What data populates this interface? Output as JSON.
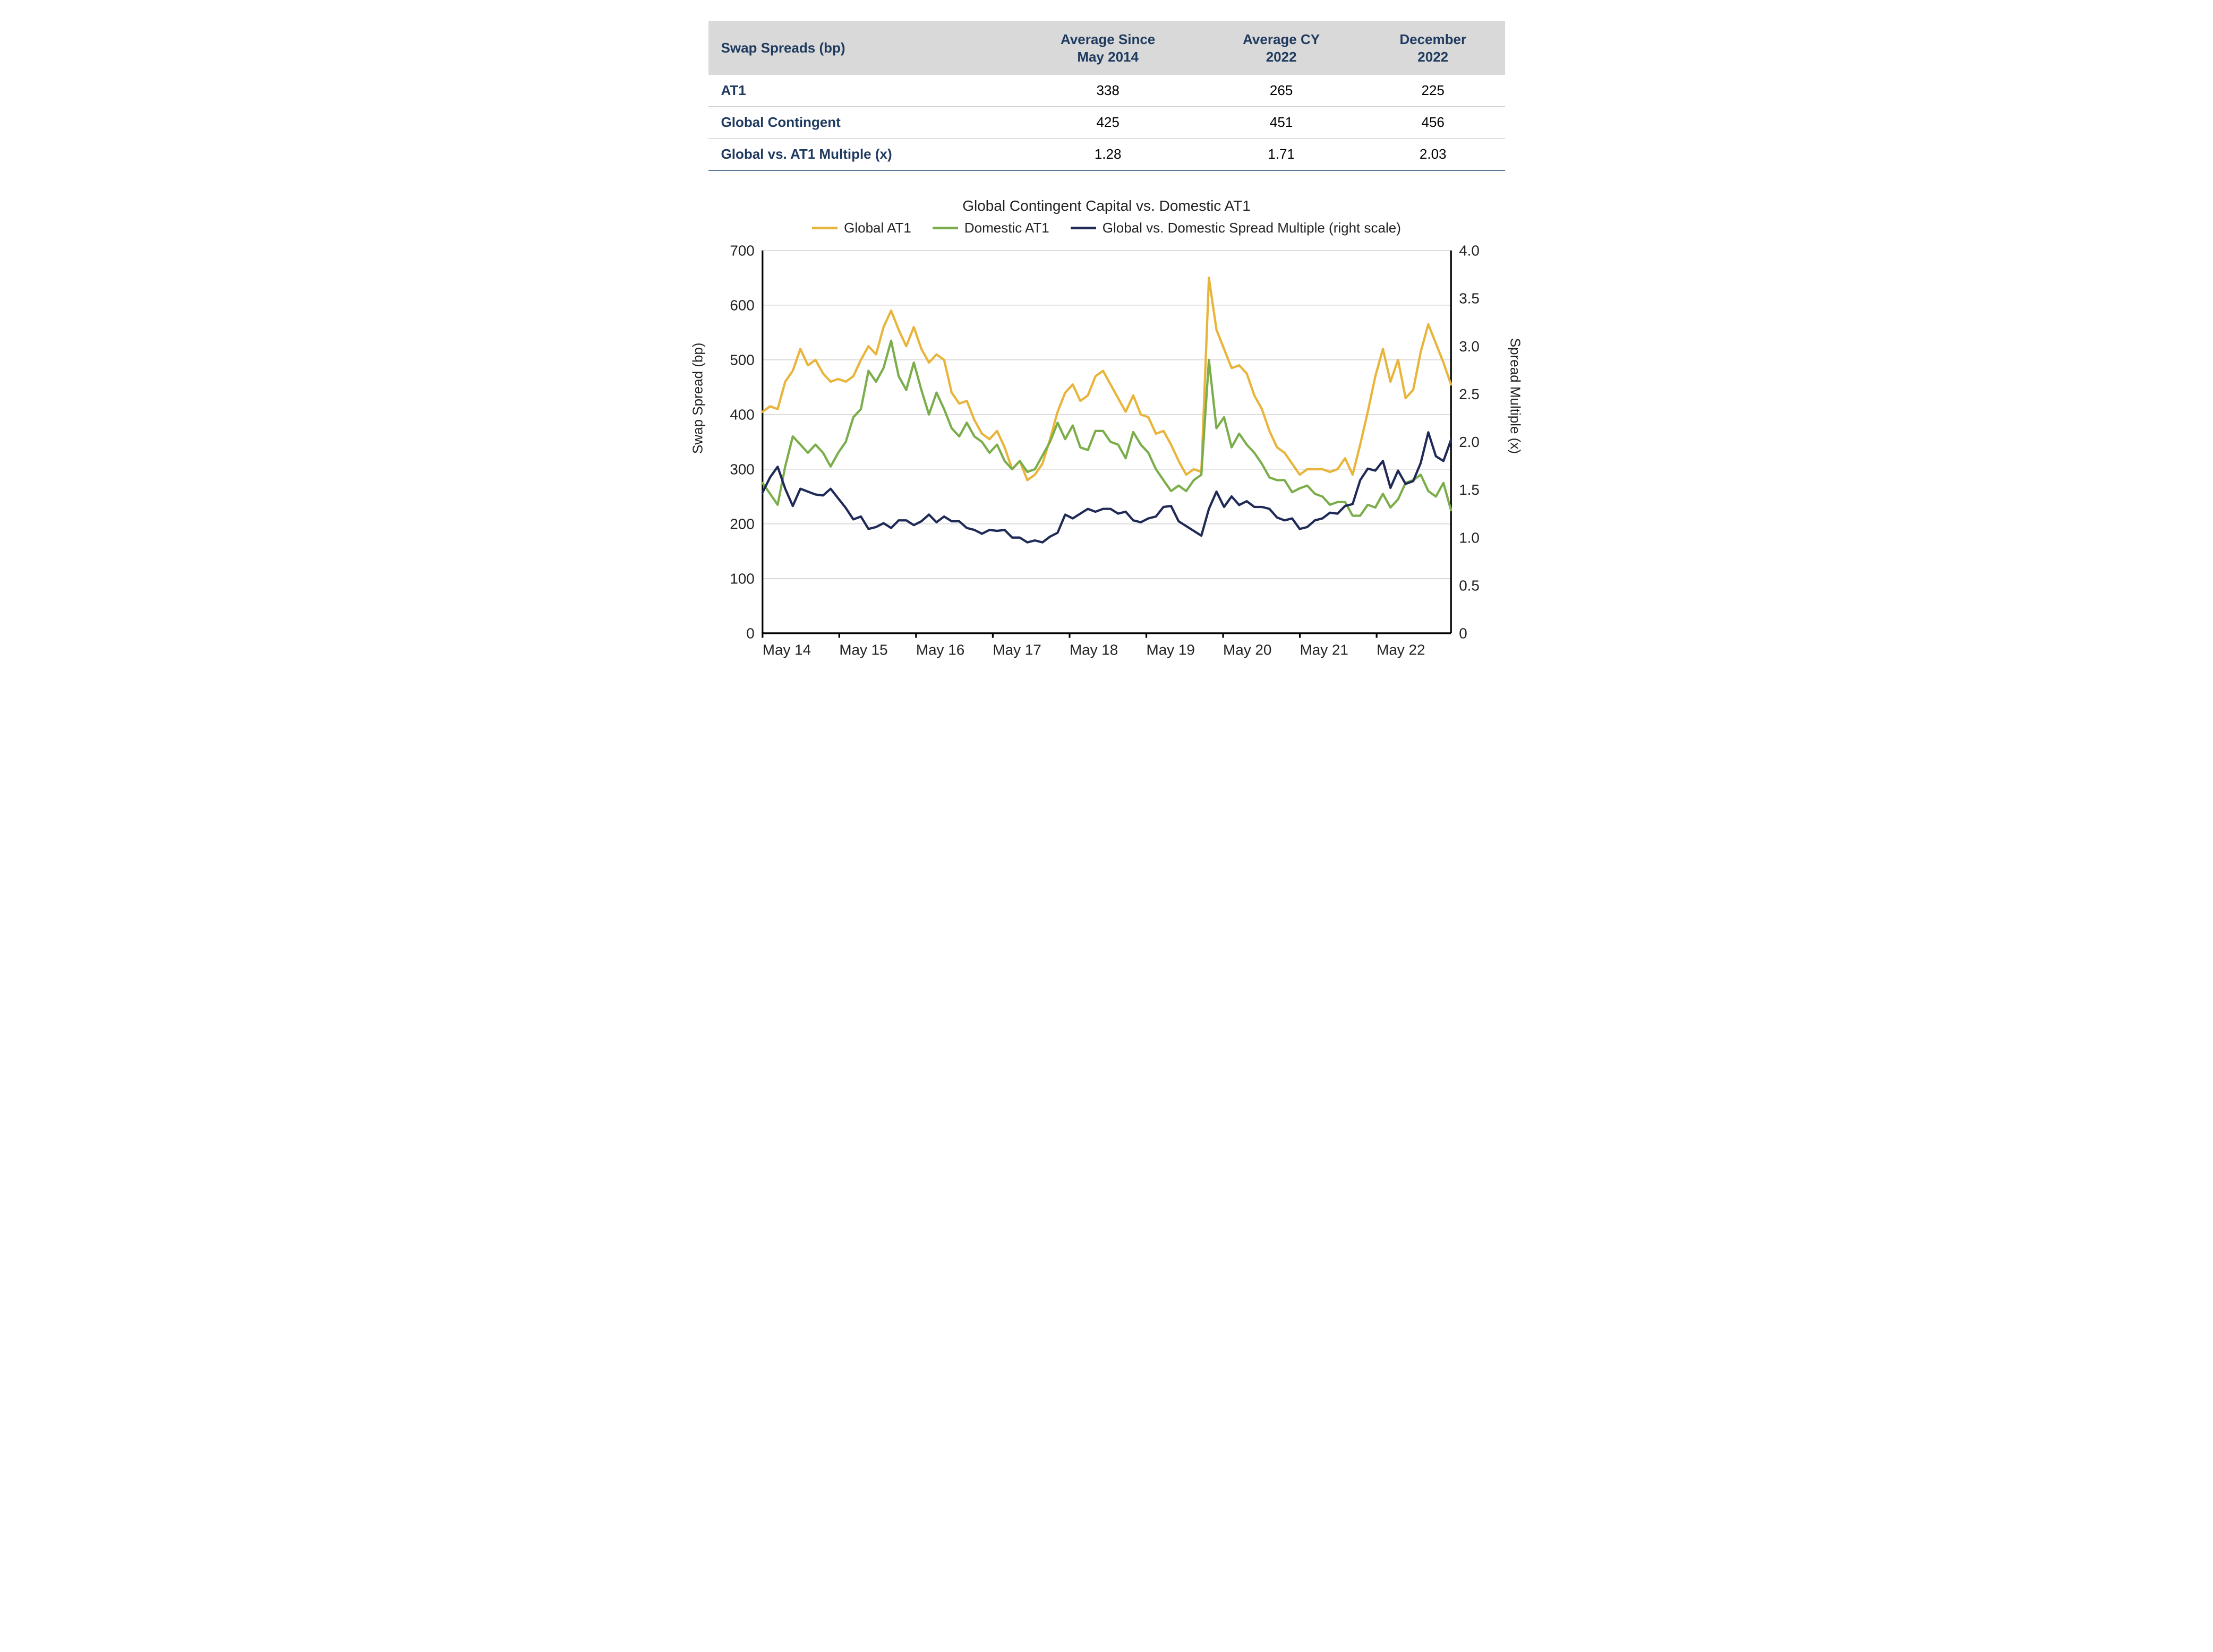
{
  "table": {
    "headers": [
      "Swap Spreads (bp)",
      "Average Since\nMay 2014",
      "Average CY\n2022",
      "December\n2022"
    ],
    "rows": [
      {
        "label": "AT1",
        "c1": "338",
        "c2": "265",
        "c3": "225"
      },
      {
        "label": "Global Contingent",
        "c1": "425",
        "c2": "451",
        "c3": "456"
      },
      {
        "label": "Global vs. AT1 Multiple (x)",
        "c1": "1.28",
        "c2": "1.71",
        "c3": "2.03"
      }
    ]
  },
  "chart": {
    "title": "Global Contingent Capital vs. Domestic AT1",
    "legend": [
      {
        "label": "Global AT1",
        "color": "#e8b43a"
      },
      {
        "label": "Domestic AT1",
        "color": "#7bae4b"
      },
      {
        "label": "Global vs. Domestic Spread Multiple (right scale)",
        "color": "#1f2a57"
      }
    ],
    "left_axis": {
      "label": "Swap Spread (bp)",
      "min": 0,
      "max": 700,
      "ticks": [
        0,
        100,
        200,
        300,
        400,
        500,
        600,
        700
      ],
      "fontsize": 26
    },
    "right_axis": {
      "label": "Spread Multiple (x)",
      "min": 0,
      "max": 4.0,
      "ticks": [
        0,
        0.5,
        1.0,
        1.5,
        2.0,
        2.5,
        3.0,
        3.5,
        4.0
      ],
      "tick_labels": [
        "0",
        "0.5",
        "1.0",
        "1.5",
        "2.0",
        "2.5",
        "3.0",
        "3.5",
        "4.0"
      ],
      "fontsize": 26
    },
    "x_axis": {
      "labels": [
        "May 14",
        "May 15",
        "May 16",
        "May 17",
        "May 18",
        "May 19",
        "May 20",
        "May 21",
        "May 22"
      ],
      "fontsize": 26
    },
    "grid_color": "#bfbfbf",
    "axis_color": "#000000",
    "background": "#ffffff",
    "line_width": 4,
    "series": {
      "global_at1": {
        "color": "#e8b43a",
        "y_axis": "left",
        "values": [
          405,
          415,
          410,
          460,
          480,
          520,
          490,
          500,
          475,
          460,
          465,
          460,
          470,
          500,
          525,
          510,
          560,
          590,
          555,
          525,
          560,
          520,
          495,
          510,
          500,
          440,
          420,
          425,
          390,
          365,
          355,
          370,
          340,
          300,
          315,
          280,
          290,
          310,
          355,
          405,
          440,
          455,
          425,
          435,
          470,
          480,
          455,
          430,
          405,
          435,
          400,
          395,
          365,
          370,
          345,
          315,
          290,
          300,
          295,
          650,
          555,
          520,
          485,
          490,
          475,
          435,
          410,
          370,
          340,
          330,
          310,
          290,
          300,
          300,
          300,
          295,
          300,
          320,
          290,
          345,
          405,
          470,
          520,
          460,
          500,
          430,
          445,
          515,
          565,
          530,
          495,
          455
        ]
      },
      "domestic_at1": {
        "color": "#7bae4b",
        "y_axis": "left",
        "values": [
          275,
          255,
          235,
          305,
          360,
          345,
          330,
          345,
          330,
          305,
          330,
          350,
          395,
          410,
          480,
          460,
          485,
          535,
          470,
          445,
          495,
          445,
          400,
          440,
          410,
          375,
          360,
          385,
          360,
          350,
          330,
          345,
          315,
          300,
          315,
          295,
          300,
          325,
          350,
          385,
          355,
          380,
          340,
          335,
          370,
          370,
          350,
          345,
          320,
          368,
          345,
          330,
          300,
          280,
          260,
          270,
          260,
          280,
          290,
          500,
          375,
          395,
          340,
          365,
          345,
          330,
          310,
          285,
          280,
          280,
          258,
          265,
          270,
          255,
          250,
          235,
          240,
          240,
          215,
          215,
          235,
          230,
          255,
          230,
          245,
          275,
          280,
          290,
          260,
          250,
          275,
          225
        ]
      },
      "multiple": {
        "color": "#1f2a57",
        "y_axis": "right",
        "values": [
          1.47,
          1.63,
          1.74,
          1.51,
          1.33,
          1.51,
          1.48,
          1.45,
          1.44,
          1.51,
          1.41,
          1.31,
          1.19,
          1.22,
          1.09,
          1.11,
          1.15,
          1.1,
          1.18,
          1.18,
          1.13,
          1.17,
          1.24,
          1.16,
          1.22,
          1.17,
          1.17,
          1.1,
          1.08,
          1.04,
          1.08,
          1.07,
          1.08,
          1.0,
          1.0,
          0.95,
          0.97,
          0.95,
          1.01,
          1.05,
          1.24,
          1.2,
          1.25,
          1.3,
          1.27,
          1.3,
          1.3,
          1.25,
          1.27,
          1.18,
          1.16,
          1.2,
          1.22,
          1.32,
          1.33,
          1.17,
          1.12,
          1.07,
          1.02,
          1.3,
          1.48,
          1.32,
          1.43,
          1.34,
          1.38,
          1.32,
          1.32,
          1.3,
          1.21,
          1.18,
          1.2,
          1.09,
          1.11,
          1.18,
          1.2,
          1.26,
          1.25,
          1.33,
          1.35,
          1.6,
          1.72,
          1.7,
          1.8,
          1.52,
          1.7,
          1.56,
          1.59,
          1.78,
          2.1,
          1.85,
          1.8,
          2.02
        ]
      }
    }
  }
}
